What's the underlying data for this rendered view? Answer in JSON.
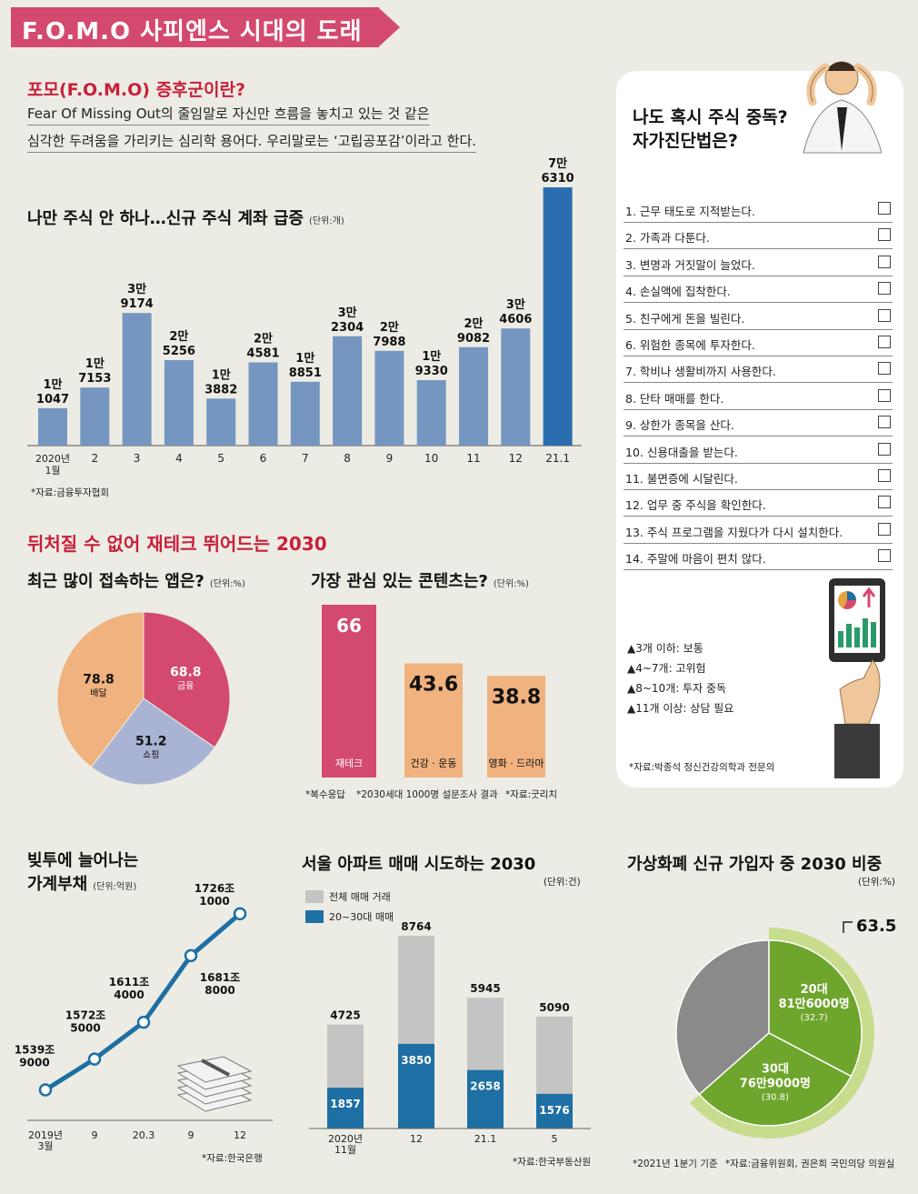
{
  "page_title": "F.O.M.O 사피엔스 시대의 도래",
  "fomo_def": {
    "heading": "포모(F.O.M.O) 증후군이란?",
    "line1": "Fear Of Missing Out의 줄임말로 자신만 흐름을 놓치고 있는 것 같은",
    "line2": "심각한 두려움을 가리키는 심리학 용어다. 우리말로는 ‘고립공포감’이라고 한다."
  },
  "section2_heading": "뒤처질 수 없어 재테크 뛰어드는 2030",
  "colors": {
    "pink": "#d4496e",
    "steel": "#7596c0",
    "navy": "#2a6eaf",
    "orange": "#f0b27e",
    "lavender": "#a9b4d4",
    "gray": "#c4c4c4",
    "green": "#6ea52c",
    "light_green": "#c8dc8e",
    "red": "#c8203b",
    "teal": "#1e6fa3"
  },
  "checklist": {
    "title_line1": "나도 혹시 주식 중독?",
    "title_line2": "자가진단법은?",
    "items": [
      "1. 근무 태도로 지적받는다.",
      "2. 가족과 다툰다.",
      "3. 변명과 거짓말이 늘었다.",
      "4. 손실액에 집착한다.",
      "5. 친구에게 돈을 빌린다.",
      "6. 위험한 종목에 투자한다.",
      "7. 학비나 생활비까지 사용한다.",
      "8. 단타 매매를 한다.",
      "9. 상한가 종목을 산다.",
      "10. 신용대출을 받는다.",
      "11. 불면증에 시달린다.",
      "12. 업무 중 주식을 확인한다.",
      "13. 주식 프로그램을 지웠다가 다시 설치한다.",
      "14. 주말에 마음이 편치 않다."
    ],
    "legend": [
      "▲3개 이하: 보통",
      "▲4~7개: 고위험",
      "▲8~10개: 투자 중독",
      "▲11개 이상: 상담 필요"
    ],
    "source": "*자료:박종석 정신건강의학과 전문의"
  },
  "chart_data": [
    {
      "type": "bar",
      "title": "나만 주식 안 하나…신규 주식 계좌 급증",
      "unit": "(단위:개)",
      "categories": [
        "2020년 1월",
        "2",
        "3",
        "4",
        "5",
        "6",
        "7",
        "8",
        "9",
        "10",
        "11",
        "12",
        "21.1"
      ],
      "values": [
        11047,
        17153,
        39174,
        25256,
        13882,
        24581,
        18851,
        32304,
        27988,
        19330,
        29082,
        34606,
        76310
      ],
      "labels": [
        [
          "1만",
          "1047"
        ],
        [
          "1만",
          "7153"
        ],
        [
          "3만",
          "9174"
        ],
        [
          "2만",
          "5256"
        ],
        [
          "1만",
          "3882"
        ],
        [
          "2만",
          "4581"
        ],
        [
          "1만",
          "8851"
        ],
        [
          "3만",
          "2304"
        ],
        [
          "2만",
          "7988"
        ],
        [
          "1만",
          "9330"
        ],
        [
          "2만",
          "9082"
        ],
        [
          "3만",
          "4606"
        ],
        [
          "7만",
          "6310"
        ]
      ],
      "source": "*자료:금융투자협회"
    },
    {
      "type": "pie",
      "title": "최근 많이 접속하는 앱은?",
      "unit": "(단위:%)",
      "slices": [
        {
          "label": "금융",
          "value": 68.8
        },
        {
          "label": "쇼핑",
          "value": 51.2
        },
        {
          "label": "배달",
          "value": 78.8
        }
      ]
    },
    {
      "type": "bar",
      "title": "가장 관심 있는 콘텐츠는?",
      "unit": "(단위:%)",
      "categories": [
        "재테크",
        "건강 · 운동",
        "영화 · 드라마"
      ],
      "values": [
        66,
        43.6,
        38.8
      ],
      "notes": [
        "*복수응답",
        "*2030세대 1000명 설문조사 결과",
        "*자료:굿리치"
      ]
    },
    {
      "type": "line",
      "title_line1": "빚투에 늘어나는",
      "title_line2": "가계부채",
      "unit": "(단위:억원)",
      "x": [
        "2019년 3월",
        "9",
        "20.3",
        "9",
        "12"
      ],
      "values": [
        15399000,
        15725000,
        16114000,
        16818000,
        17261000
      ],
      "labels": [
        [
          "1539조",
          "9000"
        ],
        [
          "1572조",
          "5000"
        ],
        [
          "1611조",
          "4000"
        ],
        [
          "1681조",
          "8000"
        ],
        [
          "1726조",
          "1000"
        ]
      ],
      "source": "*자료:한국은행"
    },
    {
      "type": "bar",
      "title": "서울 아파트 매매 시도하는 2030",
      "unit": "(단위:건)",
      "categories": [
        "2020년 11월",
        "12",
        "21.1",
        "5"
      ],
      "series": [
        {
          "name": "전체 매매 거래",
          "values": [
            4725,
            8764,
            5945,
            5090
          ]
        },
        {
          "name": "20~30대 매매",
          "values": [
            1857,
            3850,
            2658,
            1576
          ]
        }
      ],
      "source": "*자료:한국부동산원"
    },
    {
      "type": "pie",
      "title": "가상화폐 신규 가입자 중 2030 비중",
      "unit": "(단위:%)",
      "total_label": "63.5",
      "slices": [
        {
          "label_line1": "20대",
          "label_line2": "81만6000명",
          "pct_text": "(32.7)",
          "value": 32.7
        },
        {
          "label_line1": "30대",
          "label_line2": "76만9000명",
          "pct_text": "(30.8)",
          "value": 30.8
        },
        {
          "label_line1": "",
          "label_line2": "",
          "pct_text": "",
          "value": 36.5
        }
      ],
      "notes": [
        "*2021년 1분기 기준",
        "*자료:금융위원회, 권은희 국민의당 의원실"
      ]
    }
  ]
}
